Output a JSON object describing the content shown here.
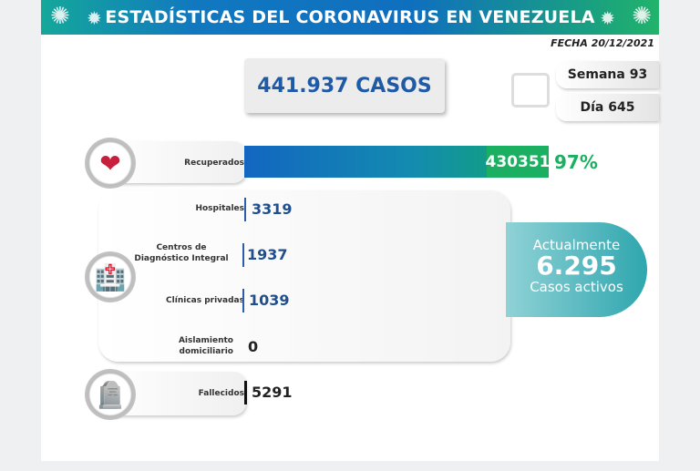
{
  "header": {
    "title": "ESTADÍSTICAS DEL CORONAVIRUS EN VENEZUELA",
    "fecha": "FECHA 20/12/2021"
  },
  "casos": "441.937 CASOS",
  "semana": "Semana 93",
  "dia": "Día 645",
  "recuperados": {
    "label": "Recuperados",
    "value": "430351",
    "percent": "97%"
  },
  "hospitalizados": [
    {
      "label": "Hospitales",
      "value": "3319"
    },
    {
      "label": "Centros de Diagnóstico Integral",
      "value": "1937"
    },
    {
      "label": "Clínicas privadas",
      "value": "1039"
    },
    {
      "label": "Aislamiento domiciliario",
      "value": "0"
    }
  ],
  "fallecidos": {
    "label": "Fallecidos",
    "value": "5291"
  },
  "activos": {
    "top": "Actualmente",
    "value": "6.295",
    "bottom": "Casos activos"
  }
}
